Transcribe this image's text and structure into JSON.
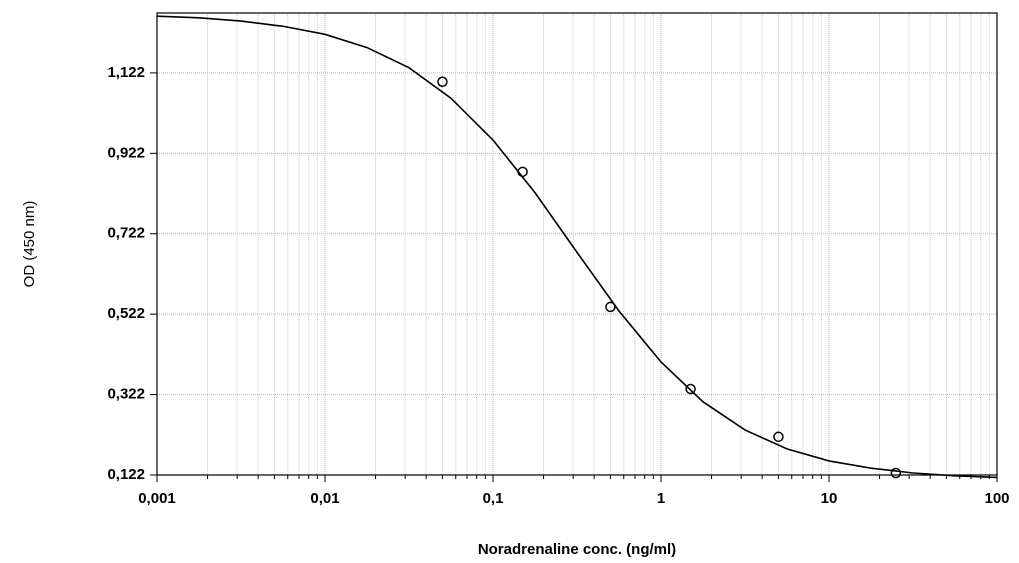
{
  "chart_data": {
    "type": "scatter",
    "x_label": "Noradrenaline conc. (ng/ml)",
    "y_label": "OD (450 nm)",
    "xscale": "log",
    "grid": true,
    "xlim": [
      0.001,
      100
    ],
    "ylim": [
      0.122,
      1.271
    ],
    "xticks": [
      {
        "value": 0.001,
        "label": "0,001"
      },
      {
        "value": 0.01,
        "label": "0,01"
      },
      {
        "value": 0.1,
        "label": "0,1"
      },
      1,
      10,
      100
    ],
    "yticks": [
      {
        "value": 0.122,
        "label": "0,122"
      },
      {
        "value": 0.322,
        "label": "0,322"
      },
      {
        "value": 0.522,
        "label": "0,522"
      },
      {
        "value": 0.722,
        "label": "0,722"
      },
      {
        "value": 0.922,
        "label": "0,922"
      },
      {
        "value": 1.122,
        "label": "1,122"
      }
    ],
    "points": {
      "color": "#000000",
      "x": [
        0.05,
        0.15,
        0.5,
        1.5,
        5,
        25
      ],
      "values": [
        1.1,
        0.876,
        0.54,
        0.336,
        0.217,
        0.127
      ]
    },
    "curve": {
      "color": "#000000",
      "x": [
        0.001,
        0.00178,
        0.00316,
        0.00562,
        0.01,
        0.0178,
        0.0316,
        0.0562,
        0.1,
        0.178,
        0.316,
        0.562,
        1,
        1.78,
        3.16,
        5.62,
        10,
        17.8,
        31.6,
        56.2,
        100
      ],
      "values": [
        1.263,
        1.259,
        1.251,
        1.238,
        1.218,
        1.185,
        1.135,
        1.059,
        0.955,
        0.824,
        0.676,
        0.53,
        0.403,
        0.304,
        0.234,
        0.187,
        0.157,
        0.139,
        0.127,
        0.12,
        0.116
      ]
    }
  }
}
